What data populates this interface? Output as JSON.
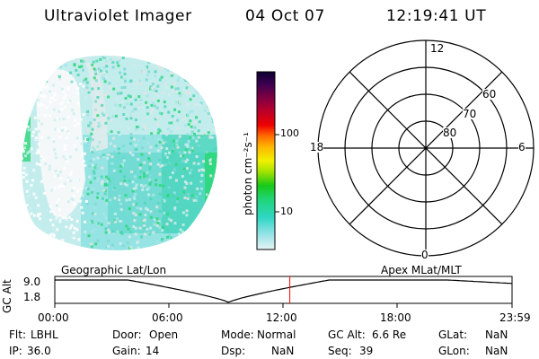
{
  "header": {
    "instrument": "Ultraviolet Imager",
    "date": "04 Oct 07",
    "time": "12:19:41 UT"
  },
  "image_panel": {
    "description_colors": [
      "#ccefef",
      "#a6e6e6",
      "#7ddbd3",
      "#4fd7b5",
      "#2ed87a",
      "#e3e6e3"
    ]
  },
  "colorbar": {
    "label": "photon cm⁻²s⁻¹",
    "ticks": [
      "100",
      "10"
    ],
    "stops": [
      "#e6f3f5",
      "#9be4e8",
      "#2fd6c4",
      "#20d57a",
      "#19c818",
      "#a5e300",
      "#f1f100",
      "#ffb400",
      "#ff6a00",
      "#ef0000",
      "#b9002a",
      "#7a0044",
      "#3c0050",
      "#0b0033"
    ]
  },
  "polar_plot": {
    "mlt_labels": [
      "12",
      "18",
      "6",
      "0"
    ],
    "lat_labels": [
      "60",
      "70",
      "80"
    ]
  },
  "orbit_plot": {
    "left_label": "Geographic Lat/Lon",
    "right_label": "Apex MLat/MLT",
    "y_title": "GC Alt",
    "y_ticks": [
      "9.0",
      "1.8"
    ],
    "x_ticks": [
      "00:00",
      "06:00",
      "12:00",
      "18:00",
      "23:59"
    ],
    "current_time_marker": "12:19:41",
    "marker_color": "#ff0000"
  },
  "status": {
    "filter_label": "Flt:",
    "filter_value": "LBHL",
    "ip_label": "IP:",
    "ip_value": "36.0",
    "door_label": "Door:",
    "door_value": "Open",
    "gain_label": "Gain:",
    "gain_value": "14",
    "mode_label": "Mode:",
    "mode_value": "Normal",
    "dsp_label": "Dsp:",
    "dsp_value": "NaN",
    "alt_label": "GC Alt:",
    "alt_value": "6.6 Re",
    "seq_label": "Seq:",
    "seq_value": "39",
    "glat_label": "GLat:",
    "glat_value": "NaN",
    "glon_label": "GLon:",
    "glon_value": "NaN"
  }
}
